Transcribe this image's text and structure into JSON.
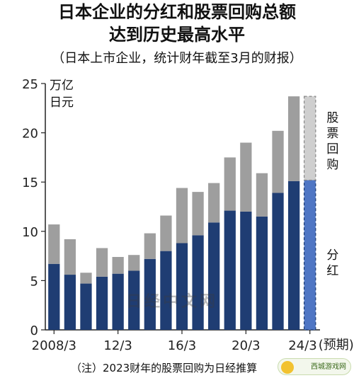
{
  "header": {
    "title_line1": "日本企业的分红和股票回购总额",
    "title_line2": "达到历史最高水平",
    "subtitle": "（日本上市企业，统计财年截至3月的财报）"
  },
  "note": "（注）2023财年的股票回购为日经推算",
  "watermark": "日经中文网",
  "logo_text": "西城游戏网",
  "chart_data": {
    "type": "bar",
    "stacked": true,
    "categories": [
      "2008/3",
      "2009/3",
      "2010/3",
      "2011/3",
      "2012/3",
      "2013/3",
      "2014/3",
      "2015/3",
      "2016/3",
      "2017/3",
      "2018/3",
      "2019/3",
      "2020/3",
      "2021/3",
      "2022/3",
      "2023/3",
      "2024/3"
    ],
    "x_tick_labels": [
      "2008/3",
      "12/3",
      "16/3",
      "20/3",
      "24/3"
    ],
    "x_tick_indices": [
      0,
      4,
      8,
      12,
      16
    ],
    "forecast_label": "(预期)",
    "series": [
      {
        "name": "分红",
        "values": [
          6.7,
          5.6,
          4.7,
          5.4,
          5.7,
          6.0,
          7.2,
          8.0,
          8.8,
          9.6,
          10.9,
          12.1,
          12.0,
          11.5,
          13.9,
          15.1,
          15.2
        ]
      },
      {
        "name": "股票回购",
        "values": [
          4.0,
          3.6,
          1.1,
          2.9,
          1.7,
          1.6,
          2.6,
          3.6,
          5.6,
          4.4,
          4.0,
          5.4,
          7.0,
          4.4,
          6.3,
          8.6,
          8.5
        ]
      }
    ],
    "ylim": [
      0,
      25
    ],
    "yticks": [
      0,
      5,
      10,
      15,
      20,
      25
    ],
    "yunit": "万亿日元",
    "legend": [
      "股票回购",
      "分红"
    ],
    "colors": {
      "dividend": "#1f3d73",
      "buyback": "#9e9e9e",
      "forecast_dividend": "#4f76c4",
      "forecast_buyback": "#cfcfcf"
    }
  }
}
